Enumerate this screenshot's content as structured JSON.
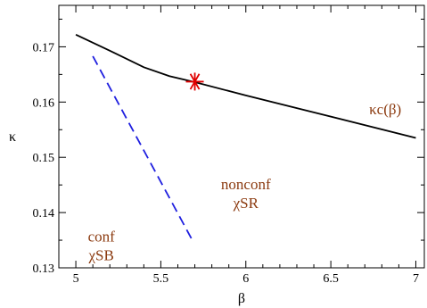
{
  "chart_data": {
    "type": "line",
    "title": "",
    "xlabel": "β",
    "ylabel": "κ",
    "xlim": [
      4.9,
      7.05
    ],
    "ylim": [
      0.13,
      0.1775
    ],
    "x_ticks": [
      5,
      5.5,
      6,
      6.5,
      7
    ],
    "x_tick_labels": [
      "5",
      "5.5",
      "6",
      "6.5",
      "7"
    ],
    "y_ticks": [
      0.13,
      0.14,
      0.15,
      0.16,
      0.17
    ],
    "y_tick_labels": [
      "0.13",
      "0.14",
      "0.15",
      "0.16",
      "0.17"
    ],
    "grid": false,
    "series": [
      {
        "style": "solid",
        "color": "#000000",
        "x": [
          5.0,
          5.2,
          5.4,
          5.55,
          5.7,
          6.0,
          6.3,
          6.6,
          7.0
        ],
        "y": [
          0.1722,
          0.1693,
          0.1663,
          0.1647,
          0.1636,
          0.1612,
          0.1589,
          0.1566,
          0.1535
        ]
      },
      {
        "style": "dashed",
        "color": "#1f1fdf",
        "x": [
          5.1,
          5.68
        ],
        "y": [
          0.1683,
          0.1353
        ]
      }
    ],
    "markers": [
      {
        "shape": "star",
        "color": "#e00000",
        "x": 5.7,
        "y": 0.1637
      }
    ],
    "annotations": [
      {
        "lines": [
          "κc(β)"
        ],
        "x": 6.82,
        "y": 0.1578
      },
      {
        "lines": [
          "nonconf",
          "χSR"
        ],
        "x": 6.0,
        "y": 0.1442
      },
      {
        "lines": [
          "conf",
          "χSB"
        ],
        "x": 5.15,
        "y": 0.1348
      }
    ]
  }
}
